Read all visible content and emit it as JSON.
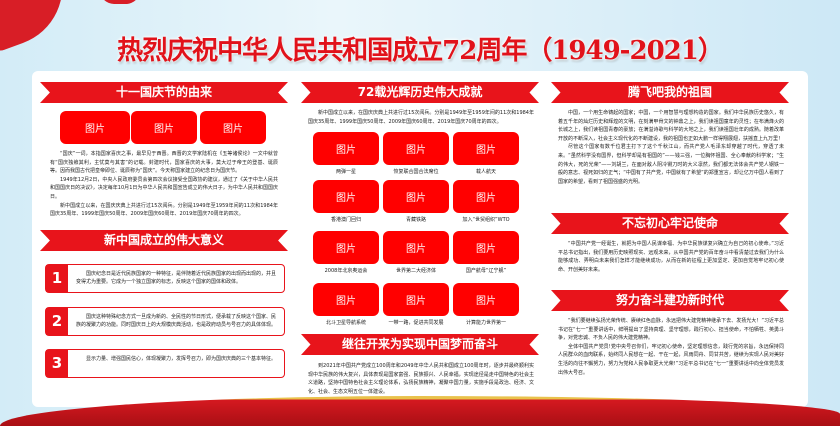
{
  "title": "热烈庆祝中华人民共和国成立72周年（1949-2021）",
  "colors": {
    "accent": "#e8141b",
    "background": "#d3ecf7"
  },
  "left": {
    "section1": {
      "heading": "十一国庆节的由来",
      "images": [
        "图片",
        "图片",
        "图片"
      ],
      "paragraphs": [
        "“国庆”一词，本指国家喜庆之事，最早见于西晋。西晋的文学家陆机在《五等诸侯论》一文中就曾有“国庆独飨其利，主忧莫与其害”的记载。封建时代，国家喜庆的大事，莫大过于帝王的登基、诞辰等。因而我国古代把皇帝即位、诞辰称为“国庆”。今天称国家建立的纪念日为国庆节。",
        "1949年12月2日，中央人民政府委员会第四次会议接受全国政协的建议，通过了《关于中华人民共和国国庆日的决议》，决定每年10月1日为中华人民共和国宣告成立的伟大日子，为中华人民共和国国庆日。",
        "新中国成立以来，在国庆庆典上共进行过15次阅兵。分别是1949年至1959年间的11次和1984年国庆35周年、1999年国庆50周年、2009年国庆60周年、2019年国庆70周年的四次。"
      ]
    },
    "section2": {
      "heading": "新中国成立的伟大意义",
      "items": [
        {
          "number": "1",
          "text": "国庆纪念日是近代民族国家的一种特征，是伴随着近代民族国家的出现而出现的，并且变得尤为重要。它成为一个独立国家的标志，反映这个国家的国体和政体。"
        },
        {
          "number": "2",
          "text": "国庆这种特殊纪念方式一旦成为新的、全民性的节日形式，便承载了反映这个国家、民族的凝聚力的功能。同时国庆日上的大规模庆典活动，也是政府动员与号召力的具体体现。"
        },
        {
          "number": "3",
          "text": "显示力量、增强国民信心，体现凝聚力，发挥号召力，即为国庆庆典的三个基本特征。"
        }
      ]
    }
  },
  "middle": {
    "section1": {
      "heading": "72载光辉历史伟大成就",
      "intro": "新中国成立以来，在国庆庆典上共进行过15次阅兵。分别是1949年至1959年间的11次和1984年国庆35周年、1999年国庆50周年、2009年国庆60周年、2019年国庆70周年的四次。",
      "achievements": [
        {
          "image": "图片",
          "caption": "两弹一星"
        },
        {
          "image": "图片",
          "caption": "恢复联合国合法席位"
        },
        {
          "image": "图片",
          "caption": "载人航天"
        },
        {
          "image": "图片",
          "caption": "香港澳门回归"
        },
        {
          "image": "图片",
          "caption": "青藏铁路"
        },
        {
          "image": "图片",
          "caption": "加入“世贸组织”WTO"
        },
        {
          "image": "图片",
          "caption": "2008年北京奥运会"
        },
        {
          "image": "图片",
          "caption": "世界第二大经济体"
        },
        {
          "image": "图片",
          "caption": "国产航母“辽宁舰”"
        },
        {
          "image": "图片",
          "caption": "北斗卫星导航系统"
        },
        {
          "image": "图片",
          "caption": "一带一路，促进共同发展"
        },
        {
          "image": "图片",
          "caption": "计算能力世界第一"
        }
      ]
    },
    "section2": {
      "heading": "继往开来为实现中国梦而奋斗",
      "text": "到2021年中国共产党成立100周年和2049年中华人民共和国成立100周年时，逐步并最终顺利实现中华民族的伟大复兴，具体表现是国家富强、民族振兴、人民幸福，实现途径是走中国特色的社会主义道路，坚持中国特色社会主义理论体系，弘扬民族精神，凝聚中国力量，实施手段是政治、经济、文化、社会、生态文明五位一体建设。"
    }
  },
  "right": {
    "section1": {
      "heading": "腾飞吧我的祖国",
      "paragraphs": [
        "中国，一个用生命铸起的国家；中国，一个用智慧与理想构造的国家。我们中华民族历史悠久，有着五千年的灿烂历史和辉煌的文明，在刻满甲骨文的钟鼎之上，我们读祖国童年的灵性；在布满烽火的长城之上，我们读祖国青春的豪放；在满溢诗歌与科学的大地之上，我们读祖国壮年的成熟。随着改革开放的不断深入，社会主义现代化的不断建设，我的祖国也正如大鹏一样得翔展翅，扶摇直上九万里！",
        "尽管这个国家有数千位君主打下了这个千秋江山，而共产党人毛泽东却穿越了时代，穿透了未来。“虽然科学没有国界，但科学却是有祖国的”——钱三强，一位胸怀祖国、全心奉献的科学家；“生的伟大，死的光荣”——刘胡兰，在面对敌人阴冷铡刀时的大义凛然，我们都无法体会共产党人钢铁一般的意志、视死如归的正气；“中国有了共产党，中国就有了希望”的郑重宣言，却让亿万中国人看到了国家的希望，看到了祖国强盛的光明。"
      ]
    },
    "section2": {
      "heading": "不忘初心牢记使命",
      "text": "“中国共产党一经诞生，就把为中国人民谋幸福、为中华民族谋复兴确立为自己的初心使命。”习近平总书记指出，我们要用历史映照现实、远观未来，从中国共产党的百年奋斗中看清楚过去我们为什么能够成功、弄明白未来我们怎样才能继续成功，从而在新的征程上更加坚定、更加自觉地牢记初心使命、开创美好未来。"
    },
    "section3": {
      "heading": "努力奋斗建功新时代",
      "paragraphs": [
        "“我们要继续弘扬光荣传统、赓续红色血脉，永远把伟大建党精神继承下去、发扬光大！”习近平总书记在“七一”重要讲话中，鲜明提出了坚持真理、坚守理想，践行初心、担当使命，不怕牺牲、英勇斗争，对党忠诚、不负人民的伟大建党精神。",
        "全体中国共产党员!党中央号召你们，牢记初心使命，坚定理想信念，践行党的宗旨，永远保持同人民群众的血肉联系，始终同人民想在一起、干在一起，风雨同舟、同甘共苦，继续为实现人民对美好生活的向往不懈努力，努力为党和人民争取更大光荣!”习近平总书记在“七一”重要讲话中向全体党员发出伟大号召。"
      ]
    }
  }
}
